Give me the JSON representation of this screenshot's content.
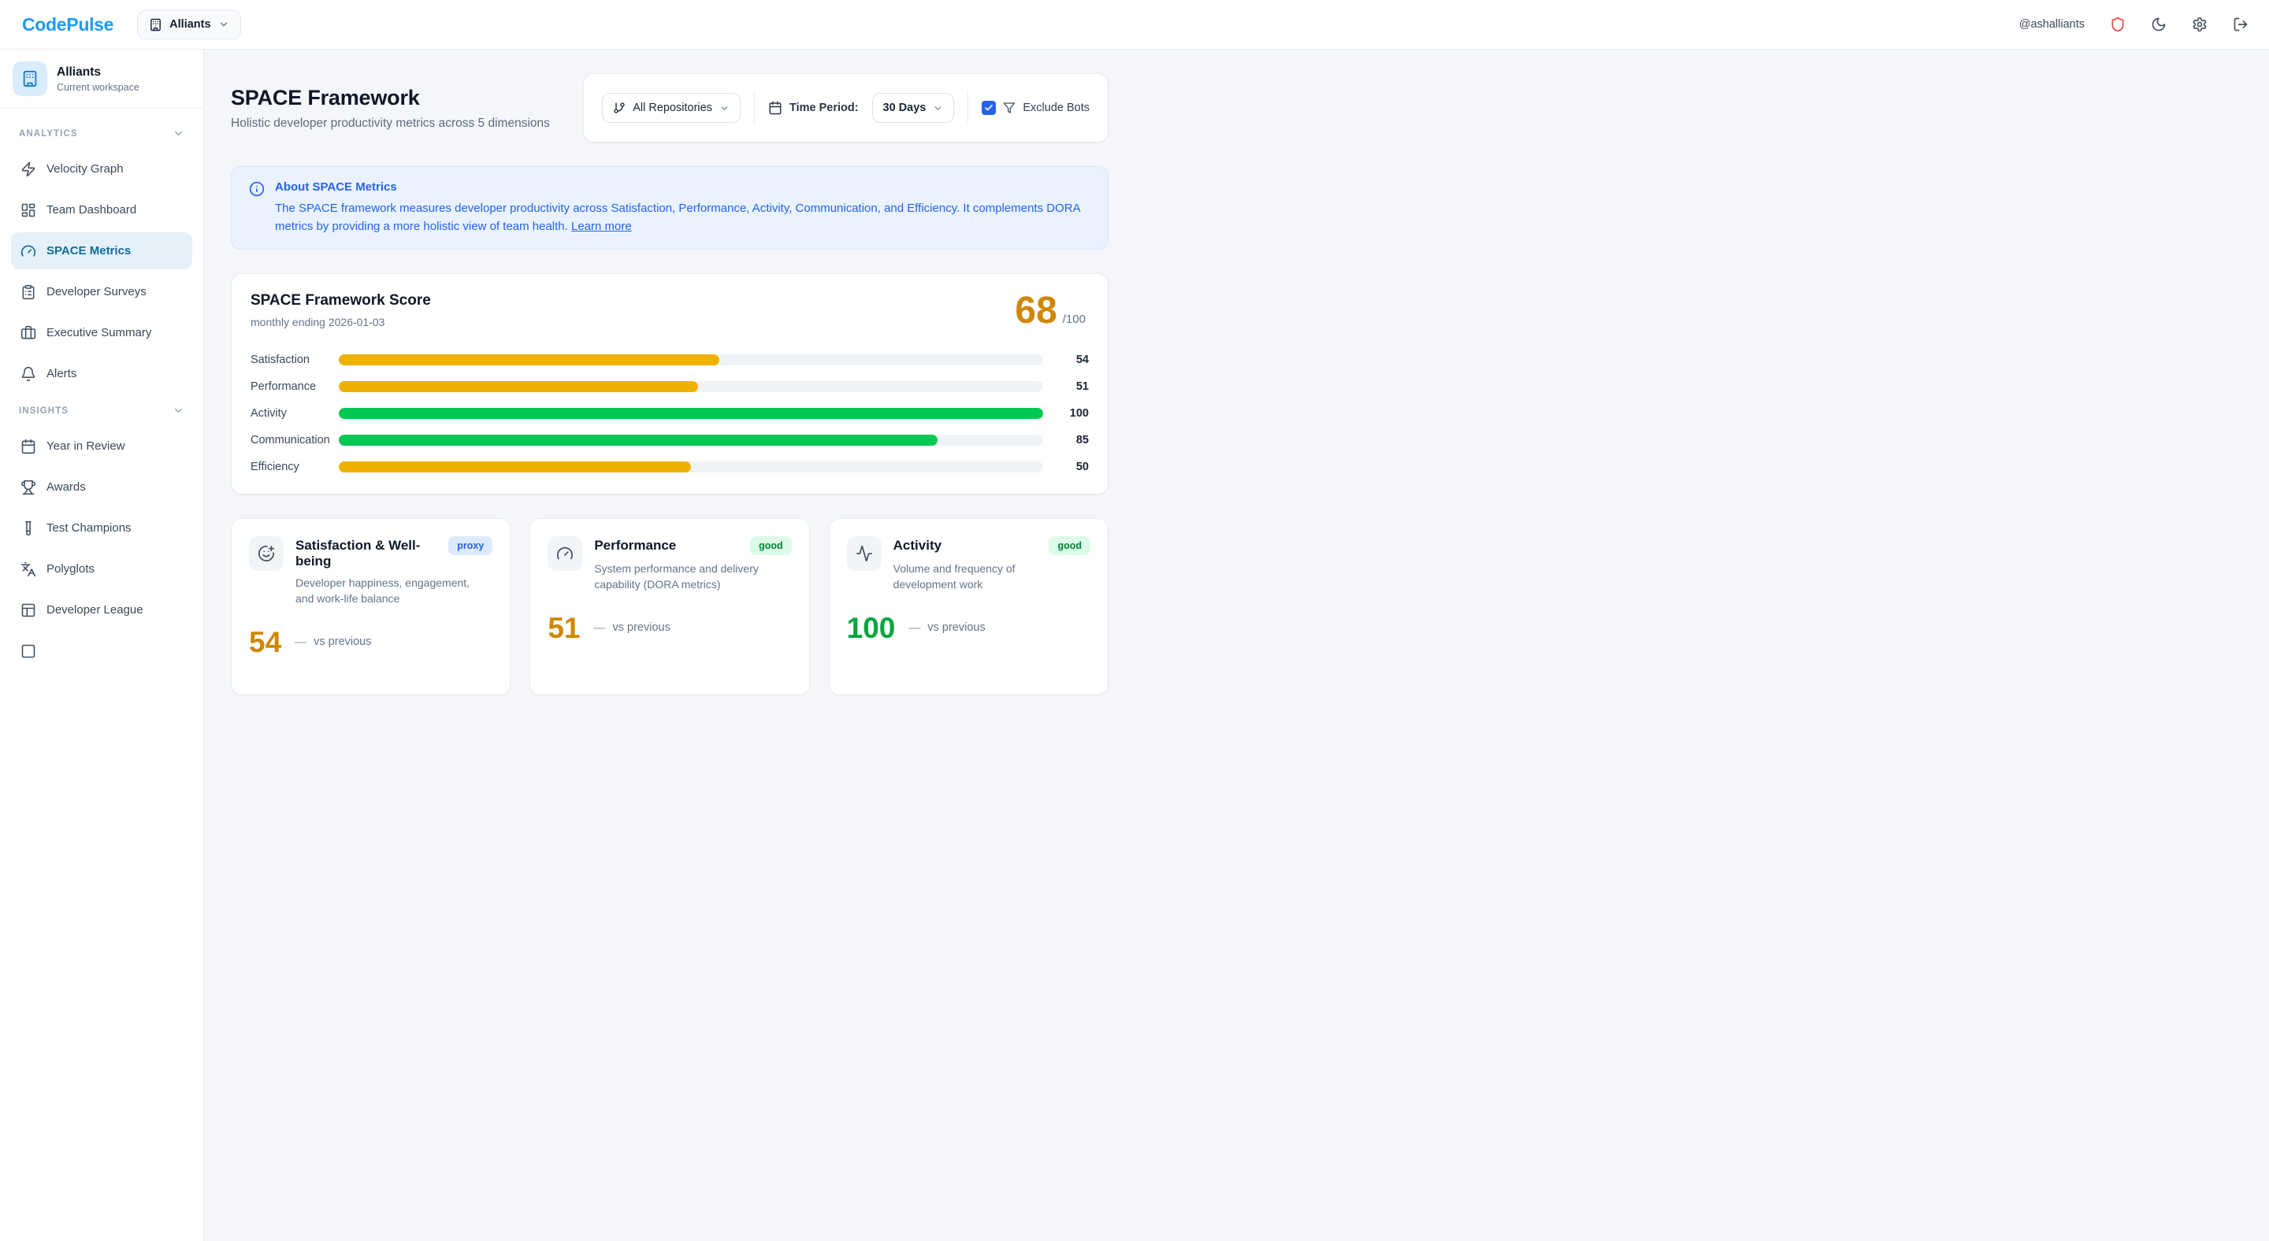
{
  "brand": "CodePulse",
  "header": {
    "workspace_chip": "Alliants",
    "username": "@ashalliants"
  },
  "colors": {
    "accent_blue": "#1d9bf0",
    "checkbox_blue": "#2563eb",
    "banner_blue": "#2563eb",
    "amber_bar": "#efb100",
    "green_bar": "#00c951",
    "amber_text": "#d08700",
    "green_text": "#00a63e"
  },
  "sidebar": {
    "workspace": {
      "name": "Alliants",
      "subtitle": "Current workspace"
    },
    "sections": [
      {
        "label": "ANALYTICS",
        "items": [
          {
            "label": "Velocity Graph",
            "icon": "zap-icon"
          },
          {
            "label": "Team Dashboard",
            "icon": "layout-dashboard-icon"
          },
          {
            "label": "SPACE Metrics",
            "icon": "gauge-icon",
            "active": true
          },
          {
            "label": "Developer Surveys",
            "icon": "clipboard-list-icon"
          },
          {
            "label": "Executive Summary",
            "icon": "briefcase-icon"
          },
          {
            "label": "Alerts",
            "icon": "bell-icon"
          }
        ]
      },
      {
        "label": "INSIGHTS",
        "items": [
          {
            "label": "Year in Review",
            "icon": "calendar-icon"
          },
          {
            "label": "Awards",
            "icon": "trophy-icon"
          },
          {
            "label": "Test Champions",
            "icon": "test-tube-icon"
          },
          {
            "label": "Polyglots",
            "icon": "languages-icon"
          },
          {
            "label": "Developer League",
            "icon": "table-icon"
          }
        ]
      }
    ]
  },
  "page": {
    "title": "SPACE Framework",
    "subtitle": "Holistic developer productivity metrics across 5 dimensions"
  },
  "filters": {
    "repository_value": "All Repositories",
    "time_period_label": "Time Period:",
    "time_period_value": "30 Days",
    "exclude_bots_label": "Exclude Bots",
    "exclude_bots_checked": true
  },
  "info_banner": {
    "title": "About SPACE Metrics",
    "body": "The SPACE framework measures developer productivity across Satisfaction, Performance, Activity, Communication, and Efficiency. It complements DORA metrics by providing a more holistic view of team health. ",
    "link": "Learn more"
  },
  "score_card": {
    "title": "SPACE Framework Score",
    "subtitle": "monthly ending 2026-01-03",
    "score": "68",
    "denominator": "/100",
    "bars": [
      {
        "label": "Satisfaction",
        "value": 54,
        "color": "#efb100"
      },
      {
        "label": "Performance",
        "value": 51,
        "color": "#efb100"
      },
      {
        "label": "Activity",
        "value": 100,
        "color": "#00c951"
      },
      {
        "label": "Communication",
        "value": 85,
        "color": "#00c951"
      },
      {
        "label": "Efficiency",
        "value": 50,
        "color": "#efb100"
      }
    ]
  },
  "chart_data": {
    "type": "bar",
    "orientation": "horizontal",
    "title": "SPACE Framework Score",
    "subtitle": "monthly ending 2026-01-03",
    "total_score": 68,
    "max": 100,
    "categories": [
      "Satisfaction",
      "Performance",
      "Activity",
      "Communication",
      "Efficiency"
    ],
    "values": [
      54,
      51,
      100,
      85,
      50
    ]
  },
  "metric_cards": [
    {
      "icon": "smile-plus-icon",
      "title": "Satisfaction & Well-being",
      "badge": "proxy",
      "description": "Developer happiness, engagement, and work-life balance",
      "value": "54",
      "value_color": "#d08700",
      "delta": "—",
      "delta_label": "vs previous"
    },
    {
      "icon": "gauge-icon",
      "title": "Performance",
      "badge": "good",
      "description": "System performance and delivery capability (DORA metrics)",
      "value": "51",
      "value_color": "#d08700",
      "delta": "—",
      "delta_label": "vs previous"
    },
    {
      "icon": "activity-icon",
      "title": "Activity",
      "badge": "good",
      "description": "Volume and frequency of development work",
      "value": "100",
      "value_color": "#00a63e",
      "delta": "—",
      "delta_label": "vs previous"
    }
  ]
}
